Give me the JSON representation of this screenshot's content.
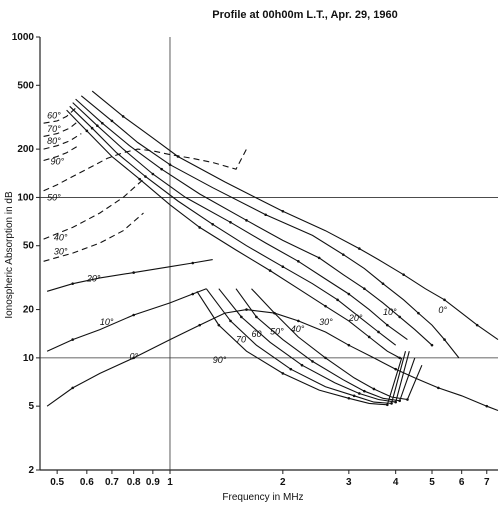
{
  "chart_data": {
    "type": "line",
    "title": "Profile at 00h00m L.T., Apr. 29, 1960",
    "xlabel": "Frequency in MHz",
    "ylabel": "Ionospheric Absorption in dB",
    "x_scale": "log",
    "y_scale": "log",
    "xlim": [
      0.45,
      7.5
    ],
    "ylim": [
      2,
      1000
    ],
    "grid": false,
    "reference_lines": {
      "x": [
        1.0
      ],
      "y": [
        10,
        100
      ]
    },
    "xticks": [
      {
        "v": 0.5,
        "label": "0.5"
      },
      {
        "v": 0.6,
        "label": "0.6"
      },
      {
        "v": 0.7,
        "label": "0.7"
      },
      {
        "v": 0.8,
        "label": "0.8"
      },
      {
        "v": 0.9,
        "label": "0.9"
      },
      {
        "v": 1,
        "label": "1"
      },
      {
        "v": 2,
        "label": "2"
      },
      {
        "v": 3,
        "label": "3"
      },
      {
        "v": 4,
        "label": "4"
      },
      {
        "v": 5,
        "label": "5"
      },
      {
        "v": 6,
        "label": "6"
      },
      {
        "v": 7,
        "label": "7"
      }
    ],
    "yticks": [
      {
        "v": 1000,
        "label": "1000"
      },
      {
        "v": 500,
        "label": "500"
      },
      {
        "v": 200,
        "label": "200"
      },
      {
        "v": 100,
        "label": "100"
      },
      {
        "v": 50,
        "label": "50"
      },
      {
        "v": 20,
        "label": "20"
      },
      {
        "v": 10,
        "label": "10"
      },
      {
        "v": 5,
        "label": "5"
      },
      {
        "v": 2,
        "label": "2"
      }
    ],
    "upper_group_series": [
      {
        "label": "0°",
        "dash": false,
        "x": [
          0.62,
          0.75,
          0.9,
          1.05,
          1.4,
          2.0,
          2.6,
          3.2,
          3.6,
          4.2,
          4.8,
          5.4,
          6.0,
          6.6,
          7.5
        ],
        "y": [
          460,
          320,
          235,
          180,
          125,
          82,
          62,
          48,
          41,
          33,
          27,
          23,
          19,
          16,
          13
        ]
      },
      {
        "label": "10°",
        "dash": false,
        "x": [
          0.58,
          0.7,
          0.82,
          1.0,
          1.3,
          1.8,
          2.4,
          2.9,
          3.3,
          3.7,
          4.2,
          4.6,
          5.0,
          5.4,
          5.9
        ],
        "y": [
          430,
          300,
          220,
          160,
          115,
          78,
          58,
          44,
          36,
          29,
          23,
          19,
          16,
          13,
          10
        ]
      },
      {
        "label": "20°",
        "dash": false,
        "x": [
          0.56,
          0.66,
          0.78,
          0.95,
          1.2,
          1.6,
          2.0,
          2.5,
          2.9,
          3.3,
          3.7,
          4.1,
          4.5,
          5.0
        ],
        "y": [
          410,
          290,
          210,
          150,
          105,
          72,
          54,
          42,
          33,
          27,
          22,
          18,
          15,
          12
        ]
      },
      {
        "label": "30°",
        "dash": false,
        "x": [
          0.55,
          0.64,
          0.75,
          0.9,
          1.1,
          1.45,
          1.8,
          2.2,
          2.6,
          3.0,
          3.4,
          3.8,
          4.3
        ],
        "y": [
          390,
          280,
          200,
          140,
          100,
          70,
          52,
          40,
          31,
          25,
          20,
          16,
          13
        ]
      },
      {
        "label": "40°",
        "dash": false,
        "x": [
          0.54,
          0.62,
          0.72,
          0.86,
          1.05,
          1.3,
          1.6,
          2.0,
          2.4,
          2.8,
          3.2,
          3.6,
          4.0
        ],
        "y": [
          370,
          270,
          190,
          135,
          95,
          68,
          50,
          37,
          29,
          23,
          18,
          14.5,
          12
        ]
      },
      {
        "label": "50°",
        "dash": false,
        "x": [
          0.53,
          0.6,
          0.7,
          0.83,
          1.0,
          1.2,
          1.5,
          1.85,
          2.2,
          2.6,
          3.0,
          3.4,
          3.8,
          4.1
        ],
        "y": [
          350,
          260,
          180,
          130,
          90,
          65,
          47,
          35,
          27,
          21,
          17,
          13.5,
          11,
          10
        ]
      }
    ],
    "lower_group_series": [
      {
        "label": "0°",
        "dash": false,
        "x": [
          0.47,
          0.55,
          0.65,
          0.8,
          1.0,
          1.2,
          1.4,
          1.6,
          1.9,
          2.2,
          2.6,
          3.0,
          3.5,
          4.0,
          4.5,
          5.2,
          6.0,
          7.0,
          7.5
        ],
        "y": [
          5,
          6.5,
          8,
          10,
          13,
          16,
          19,
          20,
          19,
          17,
          14.5,
          12,
          10,
          8.5,
          7.5,
          6.5,
          5.8,
          5,
          4.7
        ]
      },
      {
        "label": "10°",
        "dash": false,
        "x": [
          0.47,
          0.55,
          0.65,
          0.8,
          1.0,
          1.15,
          1.25
        ],
        "y": [
          11,
          13,
          15,
          18.5,
          22,
          25,
          27
        ]
      },
      {
        "label": "20°",
        "dash": false,
        "x": [
          0.47,
          0.55,
          0.65,
          0.8,
          1.0,
          1.15,
          1.3
        ],
        "y": [
          26,
          29,
          31.5,
          34,
          37,
          39,
          41
        ]
      },
      {
        "label": "90°",
        "dash": false,
        "x": [
          1.18,
          1.35,
          1.6,
          2.0,
          2.5,
          3.0,
          3.4,
          3.8,
          4.15
        ],
        "y": [
          26,
          16,
          11,
          8,
          6.3,
          5.6,
          5.2,
          5.1,
          10
        ]
      },
      {
        "label": "80°",
        "dash": false,
        "x": [
          1.25,
          1.45,
          1.7,
          2.1,
          2.6,
          3.1,
          3.5,
          3.9,
          4.25
        ],
        "y": [
          27,
          17,
          12,
          8.5,
          6.6,
          5.8,
          5.3,
          5.2,
          11
        ]
      },
      {
        "label": "70°",
        "dash": false,
        "x": [
          1.35,
          1.55,
          1.85,
          2.25,
          2.75,
          3.2,
          3.6,
          4.0,
          4.35
        ],
        "y": [
          27,
          18,
          12.5,
          9,
          7,
          6,
          5.5,
          5.3,
          11
        ]
      },
      {
        "label": "60°",
        "dash": false,
        "x": [
          1.5,
          1.7,
          2.0,
          2.4,
          2.9,
          3.3,
          3.7,
          4.1,
          4.5
        ],
        "y": [
          27,
          18,
          13,
          9.5,
          7.3,
          6.2,
          5.6,
          5.4,
          10
        ]
      },
      {
        "label": "50°",
        "dash": false,
        "x": [
          1.65,
          1.9,
          2.2,
          2.6,
          3.1,
          3.5,
          3.9,
          4.3,
          4.7
        ],
        "y": [
          27,
          19,
          13.5,
          10,
          7.5,
          6.4,
          5.7,
          5.5,
          9
        ]
      }
    ],
    "low_freq_dashed": [
      {
        "label": "60°",
        "dash": true,
        "x": [
          0.46,
          0.5,
          0.53,
          0.56
        ],
        "y": [
          290,
          300,
          320,
          360
        ]
      },
      {
        "label": "70°",
        "dash": true,
        "x": [
          0.46,
          0.5,
          0.54,
          0.57
        ],
        "y": [
          240,
          250,
          270,
          300
        ]
      },
      {
        "label": "80°",
        "dash": true,
        "x": [
          0.46,
          0.5,
          0.54,
          0.58
        ],
        "y": [
          200,
          210,
          225,
          250
        ]
      },
      {
        "label": "90°",
        "dash": true,
        "x": [
          0.46,
          0.5,
          0.53,
          0.57
        ],
        "y": [
          170,
          180,
          190,
          210
        ]
      },
      {
        "label": "50°",
        "dash": true,
        "x": [
          0.46,
          0.5,
          0.55,
          0.6,
          0.68,
          0.75,
          0.82,
          0.9,
          1.0,
          1.15,
          1.3,
          1.5,
          1.6
        ],
        "y": [
          110,
          120,
          135,
          150,
          175,
          190,
          200,
          195,
          185,
          175,
          165,
          150,
          200
        ]
      },
      {
        "label": "40°",
        "dash": true,
        "x": [
          0.46,
          0.55,
          0.65,
          0.75,
          0.85
        ],
        "y": [
          55,
          65,
          80,
          100,
          130
        ]
      },
      {
        "label": "30°",
        "dash": true,
        "x": [
          0.46,
          0.55,
          0.65,
          0.75,
          0.85
        ],
        "y": [
          40,
          45,
          52,
          62,
          80
        ]
      }
    ],
    "annotations": [
      {
        "text": "60°",
        "x": 0.47,
        "y": 310
      },
      {
        "text": "70°",
        "x": 0.47,
        "y": 255
      },
      {
        "text": "80°",
        "x": 0.47,
        "y": 215
      },
      {
        "text": "90°",
        "x": 0.48,
        "y": 160
      },
      {
        "text": "50°",
        "x": 0.47,
        "y": 96
      },
      {
        "text": "40°",
        "x": 0.49,
        "y": 54
      },
      {
        "text": "30°",
        "x": 0.49,
        "y": 44
      },
      {
        "text": "20°",
        "x": 0.6,
        "y": 30
      },
      {
        "text": "10°",
        "x": 0.65,
        "y": 16
      },
      {
        "text": "0°",
        "x": 0.78,
        "y": 9.8
      },
      {
        "text": "90°",
        "x": 1.3,
        "y": 9.3
      },
      {
        "text": "70",
        "x": 1.5,
        "y": 12.5
      },
      {
        "text": "60",
        "x": 1.65,
        "y": 13.5
      },
      {
        "text": "50°",
        "x": 1.85,
        "y": 14
      },
      {
        "text": "40°",
        "x": 2.1,
        "y": 14.5
      },
      {
        "text": "30°",
        "x": 2.5,
        "y": 16
      },
      {
        "text": "20°",
        "x": 3.0,
        "y": 17
      },
      {
        "text": "10°",
        "x": 3.7,
        "y": 18.5
      },
      {
        "text": "0°",
        "x": 5.2,
        "y": 19
      }
    ]
  }
}
